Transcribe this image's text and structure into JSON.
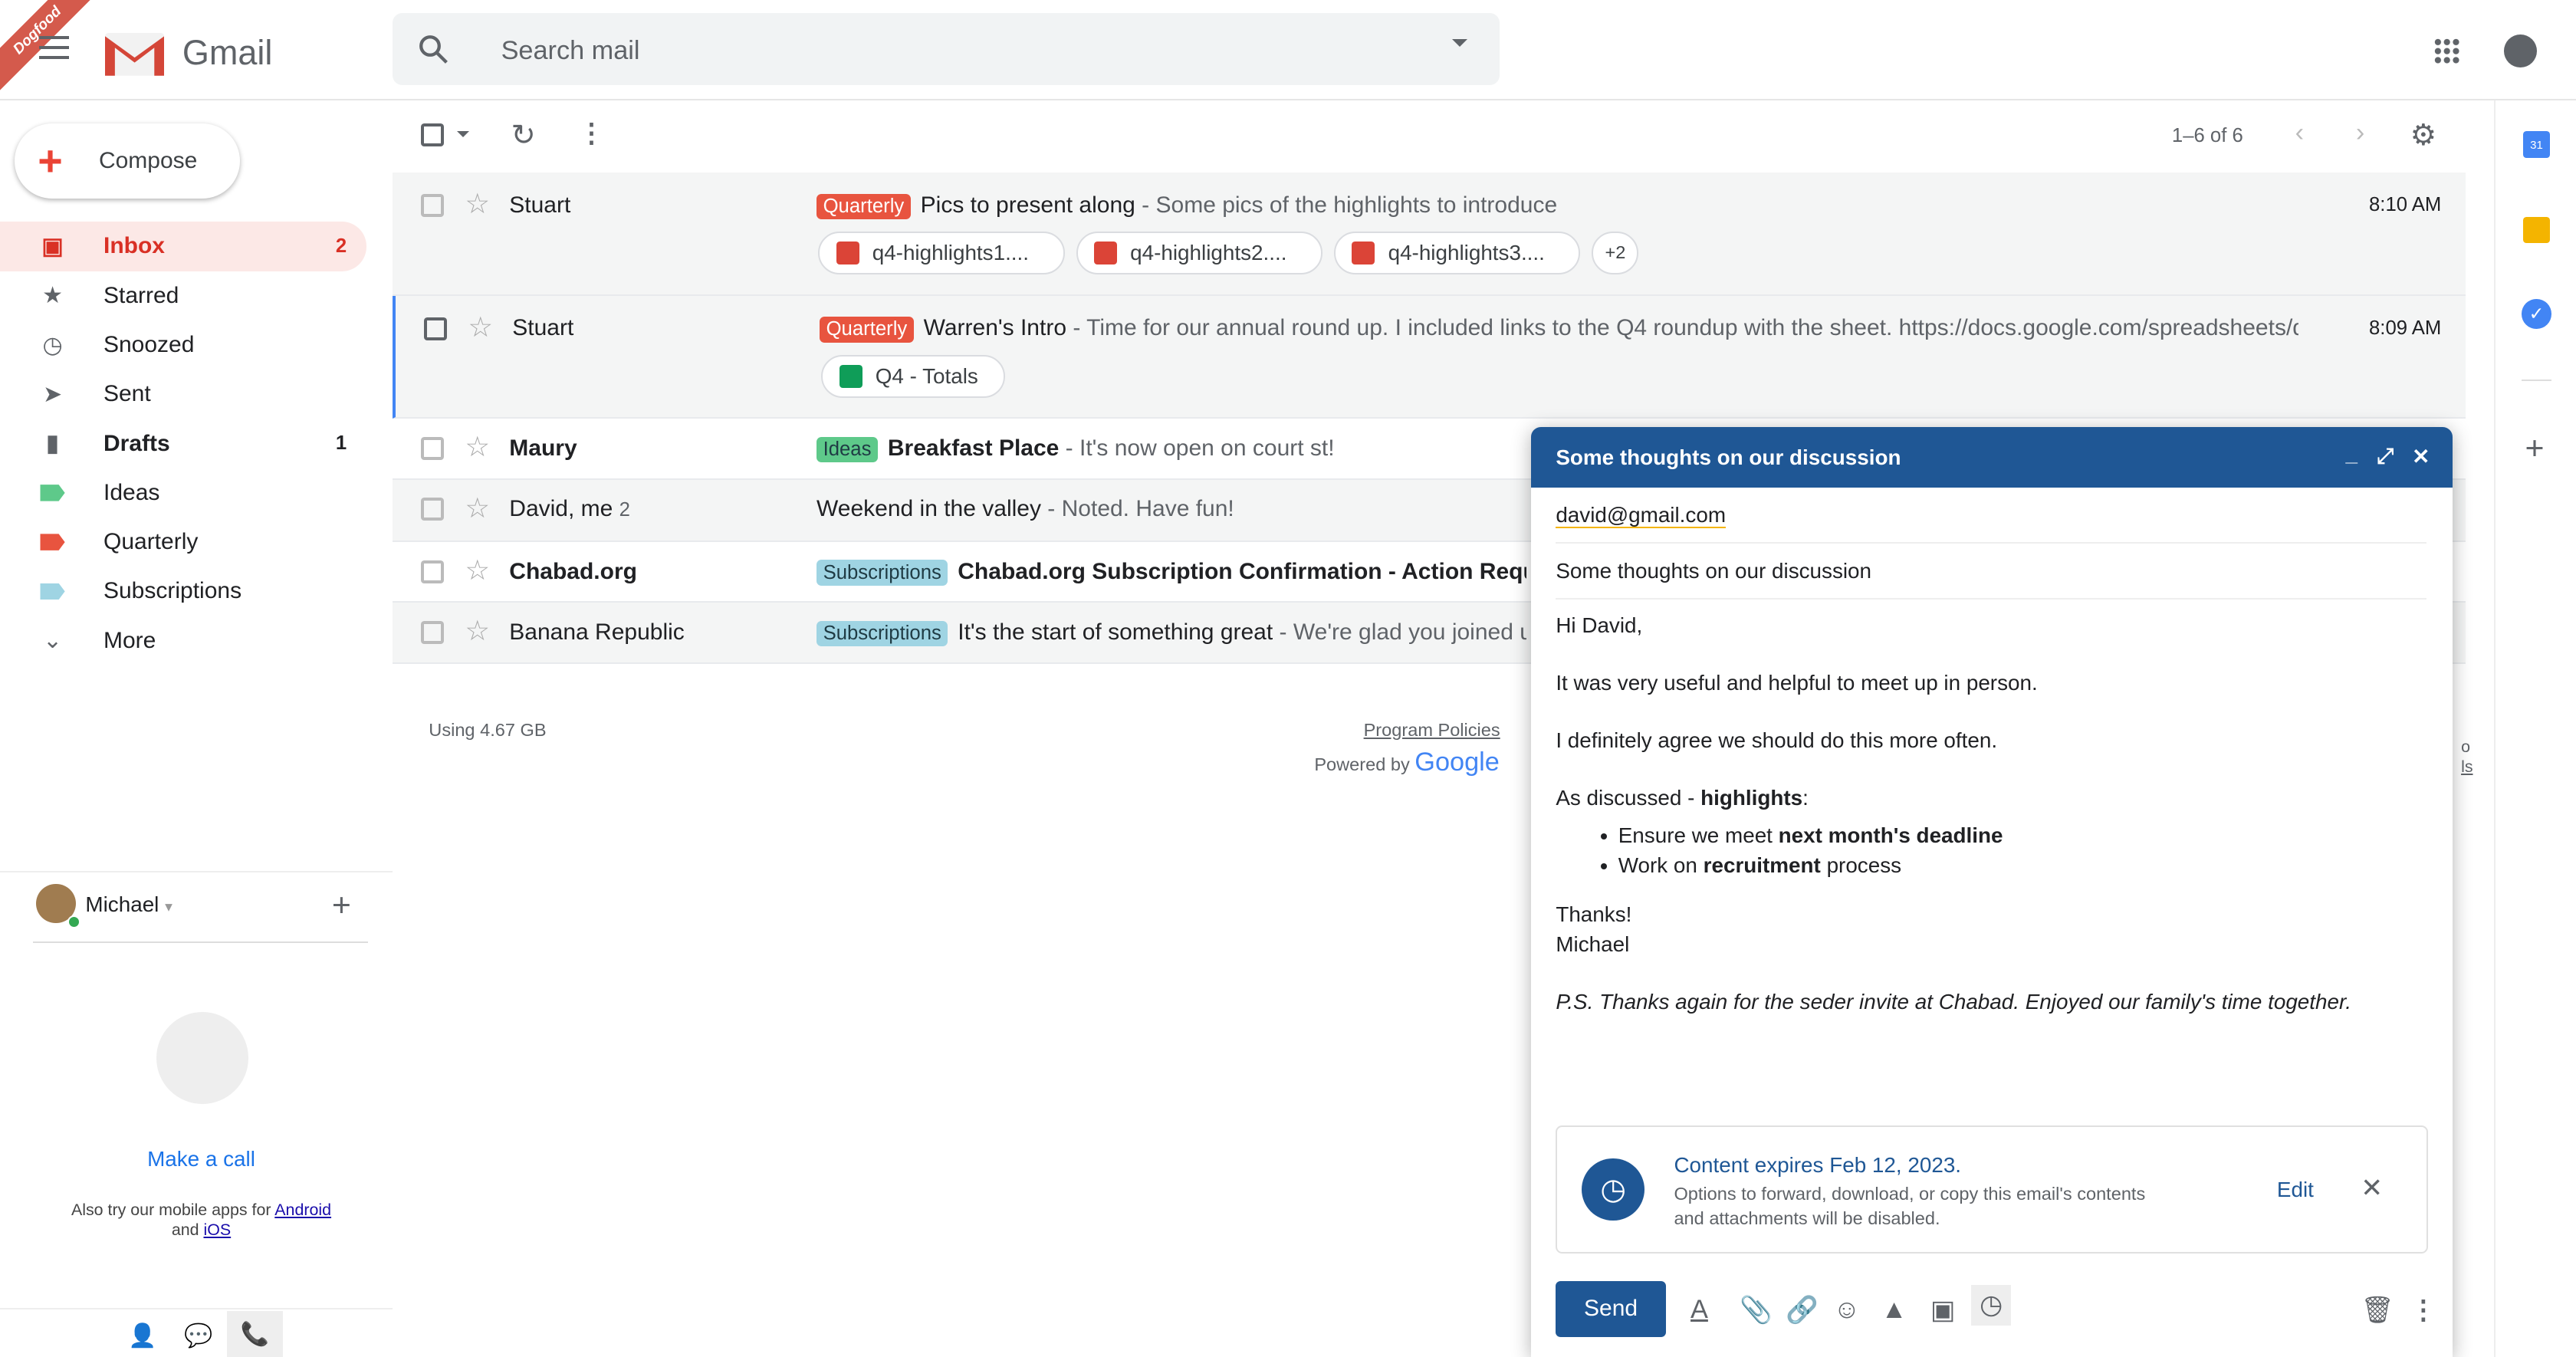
{
  "app": {
    "name": "Gmail",
    "ribbon": "Dogfood"
  },
  "search": {
    "placeholder": "Search mail"
  },
  "compose_button": "Compose",
  "sidebar": {
    "items": [
      {
        "label": "Inbox",
        "count": "2",
        "icon": "inbox-icon",
        "active": true
      },
      {
        "label": "Starred",
        "count": "",
        "icon": "star-icon"
      },
      {
        "label": "Snoozed",
        "count": "",
        "icon": "clock-icon"
      },
      {
        "label": "Sent",
        "count": "",
        "icon": "send-icon"
      },
      {
        "label": "Drafts",
        "count": "1",
        "icon": "draft-icon"
      },
      {
        "label": "Ideas",
        "count": "",
        "icon": "label-icon",
        "color": "#5ec98a"
      },
      {
        "label": "Quarterly",
        "count": "",
        "icon": "label-icon",
        "color": "#e8543f"
      },
      {
        "label": "Subscriptions",
        "count": "",
        "icon": "label-icon",
        "color": "#9fd4e3"
      },
      {
        "label": "More",
        "count": "",
        "icon": "chevron-down-icon"
      }
    ]
  },
  "account": {
    "name": "Michael"
  },
  "hangouts": {
    "make_call": "Make a call",
    "apps_prefix": "Also try our mobile apps for",
    "android": "Android",
    "and": "and",
    "ios": "iOS"
  },
  "toolbar": {
    "pagination": "1–6 of 6"
  },
  "emails": [
    {
      "sender": "Stuart",
      "label": "Quarterly",
      "label_color": "#e8543f",
      "subject": "Pics to present along",
      "snippet": " - Some pics of the highlights to introduce",
      "time": "8:10 AM",
      "unread": false,
      "attachments": [
        "q4-highlights1....",
        "q4-highlights2....",
        "q4-highlights3...."
      ],
      "more": "+2"
    },
    {
      "sender": "Stuart",
      "label": "Quarterly",
      "label_color": "#e8543f",
      "subject": "Warren's Intro",
      "snippet": " - Time for our annual round up. I included links to the Q4 roundup with the sheet. https://docs.google.com/spreadsheets/d...",
      "time": "8:09 AM",
      "unread": false,
      "attachments": [
        "Q4 - Totals"
      ]
    },
    {
      "sender": "Maury",
      "label": "Ideas",
      "label_color": "#5ec98a",
      "subject": "Breakfast Place",
      "snippet": " - It's now open on court st!",
      "unread": true
    },
    {
      "sender": "David, me",
      "sender_count": "2",
      "label": "",
      "subject": "Weekend in the valley",
      "snippet": " - Noted. Have fun!",
      "unread": false
    },
    {
      "sender": "Chabad.org",
      "label": "Subscriptions",
      "label_color": "#9fd4e3",
      "subject": "Chabad.org Subscription Confirmation - Action Required",
      "snippet": " -",
      "unread": true
    },
    {
      "sender": "Banana Republic",
      "label": "Subscriptions",
      "label_color": "#9fd4e3",
      "subject": "It's the start of something great",
      "snippet": " - We're glad you joined us",
      "unread": false
    }
  ],
  "footer": {
    "storage": "Using 4.67 GB",
    "policies": "Program Policies",
    "powered": "Powered by",
    "google": "Google",
    "frag1": "o",
    "frag2": "ls"
  },
  "compose": {
    "title": "Some thoughts on our discussion",
    "to": "david@gmail.com",
    "subject": "Some thoughts on our discussion",
    "greeting": "Hi David,",
    "p1": "It was very useful and helpful to meet up in person.",
    "p2": "I definitely agree we should do this more often.",
    "p3_pre": "As discussed - ",
    "p3_bold": "highlights",
    "p3_post": ":",
    "b1_pre": "Ensure we meet ",
    "b1_bold": "next month's deadline",
    "b2_pre": "Work on ",
    "b2_bold": "recruitment",
    "b2_post": " process",
    "thanks": "Thanks!",
    "signature": "Michael",
    "ps": "P.S. Thanks again for the seder invite at Chabad. Enjoyed our family's time together.",
    "notice_title": "Content expires Feb 12, 2023.",
    "notice_text1": "Options to forward, download, or copy this email's contents",
    "notice_text2": "and attachments will be disabled.",
    "edit": "Edit",
    "send": "Send"
  },
  "colors": {
    "accent": "#1f5795",
    "inbox_active": "#fce8e6",
    "inbox_text": "#d93025"
  }
}
